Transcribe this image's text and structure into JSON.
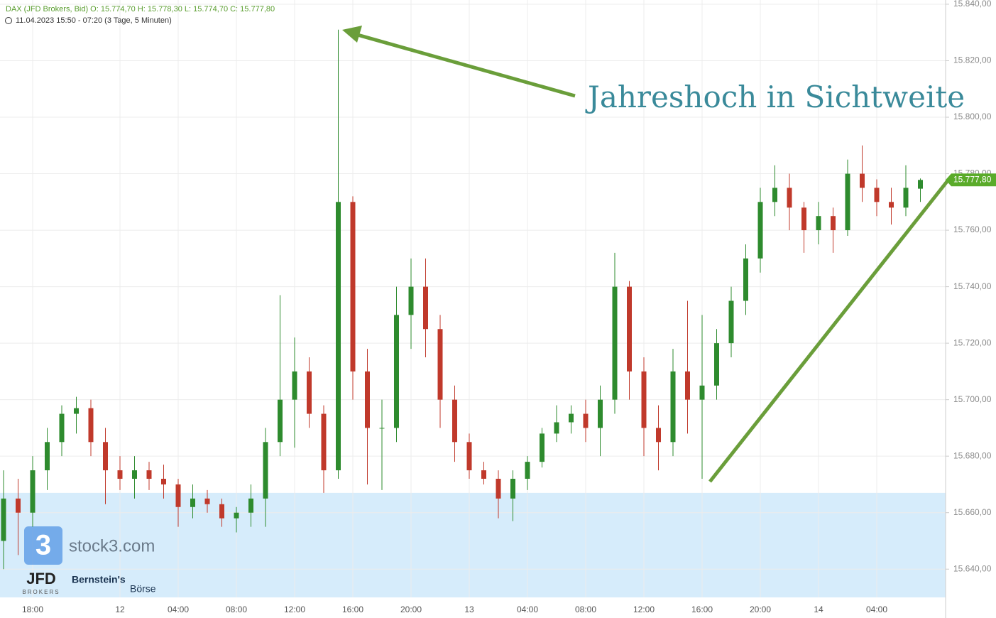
{
  "chart_data": {
    "type": "candlestick",
    "header": "DAX (JFD Brokers, Bid)   O: 15.774,70   H: 15.778,30   L: 15.774,70   C: 15.777,80",
    "subtitle": "11.04.2023 15:50 - 07:20   (3 Tage, 5 Minuten)",
    "annotation": "Jahreshoch in Sichtweite",
    "watermark": {
      "brand": "stock3.com",
      "logo": "3",
      "partner": "JFD",
      "partner_sub": "BROKERS",
      "partner2": "Bernstein's",
      "partner2_sub": "Börse"
    },
    "categories": [
      null,
      null,
      "18:00",
      null,
      null,
      null,
      null,
      null,
      "12",
      null,
      null,
      null,
      "04:00",
      null,
      null,
      null,
      "08:00",
      null,
      null,
      null,
      "12:00",
      null,
      null,
      null,
      "16:00",
      null,
      null,
      null,
      "20:00",
      null,
      null,
      null,
      "13",
      null,
      null,
      null,
      "04:00",
      null,
      null,
      null,
      "08:00",
      null,
      null,
      null,
      "12:00",
      null,
      null,
      null,
      "16:00",
      null,
      null,
      null,
      "20:00",
      null,
      null,
      null,
      "14",
      null,
      null,
      null,
      "04:00",
      null,
      null,
      null
    ],
    "open": [
      15650,
      15665,
      15660,
      15675,
      15685,
      15695,
      15697,
      15685,
      15675,
      15672,
      15675,
      15672,
      15670,
      15662,
      15665,
      15663,
      15658,
      15660,
      15665,
      15685,
      15700,
      15710,
      15695,
      15675,
      15770,
      15710,
      15690,
      15690,
      15730,
      15740,
      15725,
      15700,
      15685,
      15675,
      15672,
      15665,
      15672,
      15678,
      15688,
      15692,
      15695,
      15690,
      15700,
      15740,
      15710,
      15690,
      15685,
      15710,
      15700,
      15705,
      15720,
      15735,
      15750,
      15770,
      15775,
      15768,
      15760,
      15765,
      15760,
      15780,
      15775,
      15770,
      15768,
      15774.7
    ],
    "high": [
      15675,
      15672,
      15680,
      15690,
      15698,
      15701,
      15700,
      15690,
      15680,
      15680,
      15678,
      15677,
      15672,
      15670,
      15668,
      15665,
      15662,
      15670,
      15690,
      15737,
      15722,
      15715,
      15698,
      15831,
      15772,
      15718,
      15700,
      15740,
      15750,
      15750,
      15730,
      15705,
      15688,
      15678,
      15675,
      15675,
      15680,
      15690,
      15698,
      15698,
      15700,
      15705,
      15752,
      15742,
      15715,
      15698,
      15718,
      15735,
      15730,
      15725,
      15740,
      15755,
      15775,
      15783,
      15780,
      15770,
      15770,
      15768,
      15785,
      15790,
      15778,
      15775,
      15783,
      15778.3
    ],
    "low": [
      15640,
      15645,
      15655,
      15668,
      15680,
      15688,
      15680,
      15663,
      15668,
      15665,
      15668,
      15665,
      15655,
      15658,
      15660,
      15655,
      15653,
      15655,
      15655,
      15680,
      15683,
      15690,
      15667,
      15672,
      15700,
      15670,
      15668,
      15685,
      15718,
      15715,
      15690,
      15678,
      15672,
      15670,
      15658,
      15657,
      15668,
      15676,
      15685,
      15688,
      15685,
      15680,
      15695,
      15700,
      15680,
      15675,
      15680,
      15688,
      15672,
      15700,
      15715,
      15730,
      15745,
      15765,
      15760,
      15752,
      15755,
      15752,
      15758,
      15770,
      15765,
      15762,
      15765,
      15770
    ],
    "close": [
      15665,
      15660,
      15675,
      15685,
      15695,
      15697,
      15685,
      15675,
      15672,
      15675,
      15672,
      15670,
      15662,
      15665,
      15663,
      15658,
      15660,
      15665,
      15685,
      15700,
      15710,
      15695,
      15675,
      15770,
      15710,
      15690,
      15690,
      15730,
      15740,
      15725,
      15700,
      15685,
      15675,
      15672,
      15665,
      15672,
      15678,
      15688,
      15692,
      15695,
      15690,
      15700,
      15740,
      15710,
      15690,
      15685,
      15710,
      15700,
      15705,
      15720,
      15735,
      15750,
      15770,
      15775,
      15768,
      15760,
      15765,
      15760,
      15780,
      15775,
      15770,
      15768,
      15775,
      15777.8
    ],
    "up_color": "#2e8b2e",
    "down_color": "#c0392b",
    "zone": [
      15630,
      15667
    ],
    "zone_color": "#d6ecfb",
    "last_price": {
      "value": 15777.8,
      "label": "15.777,80"
    },
    "last_color": "#5aab2a",
    "ylim": [
      15630,
      15841.5
    ],
    "yticks": [
      {
        "value": 15640,
        "label": "15.640,00"
      },
      {
        "value": 15660,
        "label": "15.660,00"
      },
      {
        "value": 15680,
        "label": "15.680,00"
      },
      {
        "value": 15700,
        "label": "15.700,00"
      },
      {
        "value": 15720,
        "label": "15.720,00"
      },
      {
        "value": 15740,
        "label": "15.740,00"
      },
      {
        "value": 15760,
        "label": "15.760,00"
      },
      {
        "value": 15780,
        "label": "15.780,00"
      },
      {
        "value": 15800,
        "label": "15.800,00"
      },
      {
        "value": 15820,
        "label": "15.820,00"
      },
      {
        "value": 15840,
        "label": "15.840,00"
      }
    ],
    "grid": true
  }
}
